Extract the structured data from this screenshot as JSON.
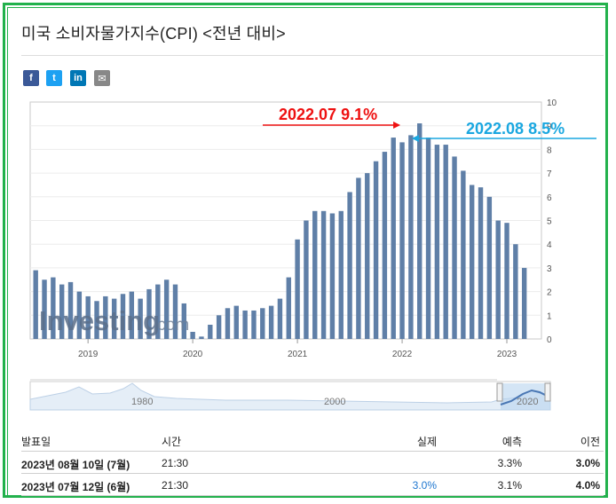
{
  "title": "미국 소비자물가지수(CPI) <전년 대비>",
  "share_buttons": [
    {
      "name": "facebook",
      "glyph": "f"
    },
    {
      "name": "twitter",
      "glyph": "t"
    },
    {
      "name": "linkedin",
      "glyph": "in"
    },
    {
      "name": "email",
      "glyph": "✉"
    }
  ],
  "watermark": {
    "brand": "Investing",
    "suffix": ".com"
  },
  "chart_data": {
    "type": "bar",
    "ylim": [
      0,
      10
    ],
    "y_ticks": [
      "0",
      "1",
      "2",
      "3",
      "4",
      "5",
      "6",
      "7",
      "8",
      "9",
      "10"
    ],
    "x_tick_labels": [
      "2019",
      "2020",
      "2021",
      "2022",
      "2023"
    ],
    "bar_color": "#5f7fa7",
    "series": [
      {
        "values": [
          2.9,
          2.5,
          2.6,
          2.3,
          2.4,
          2.0,
          1.8,
          1.6,
          1.8,
          1.7,
          1.9,
          2.0,
          1.7,
          2.1,
          2.3,
          2.5,
          2.3,
          1.5,
          0.3,
          0.1,
          0.6,
          1.0,
          1.3,
          1.4,
          1.2,
          1.2,
          1.3,
          1.4,
          1.7,
          2.6,
          4.2,
          5.0,
          5.4,
          5.4,
          5.3,
          5.4,
          6.2,
          6.8,
          7.0,
          7.5,
          7.9,
          8.5,
          8.3,
          8.6,
          9.1,
          8.5,
          8.2,
          8.2,
          7.7,
          7.1,
          6.5,
          6.4,
          6.0,
          5.0,
          4.9,
          4.0,
          3.0
        ]
      }
    ],
    "annotations": [
      {
        "text": "2022.07 9.1%",
        "color": "#ee1111"
      },
      {
        "text": "2022.08 8.5%",
        "color": "#1aa7e0"
      }
    ],
    "navigator": {
      "labels": [
        "1980",
        "2000",
        "2020"
      ]
    }
  },
  "table": {
    "headers": [
      "발표일",
      "시간",
      "실제",
      "예측",
      "이전"
    ],
    "rows": [
      {
        "date": "2023년 08월 10일 (7월)",
        "time": "21:30",
        "actual": "",
        "forecast": "3.3%",
        "previous": "3.0%"
      },
      {
        "date": "2023년 07월 12일 (6월)",
        "time": "21:30",
        "actual": "3.0%",
        "forecast": "3.1%",
        "previous": "4.0%"
      }
    ]
  }
}
